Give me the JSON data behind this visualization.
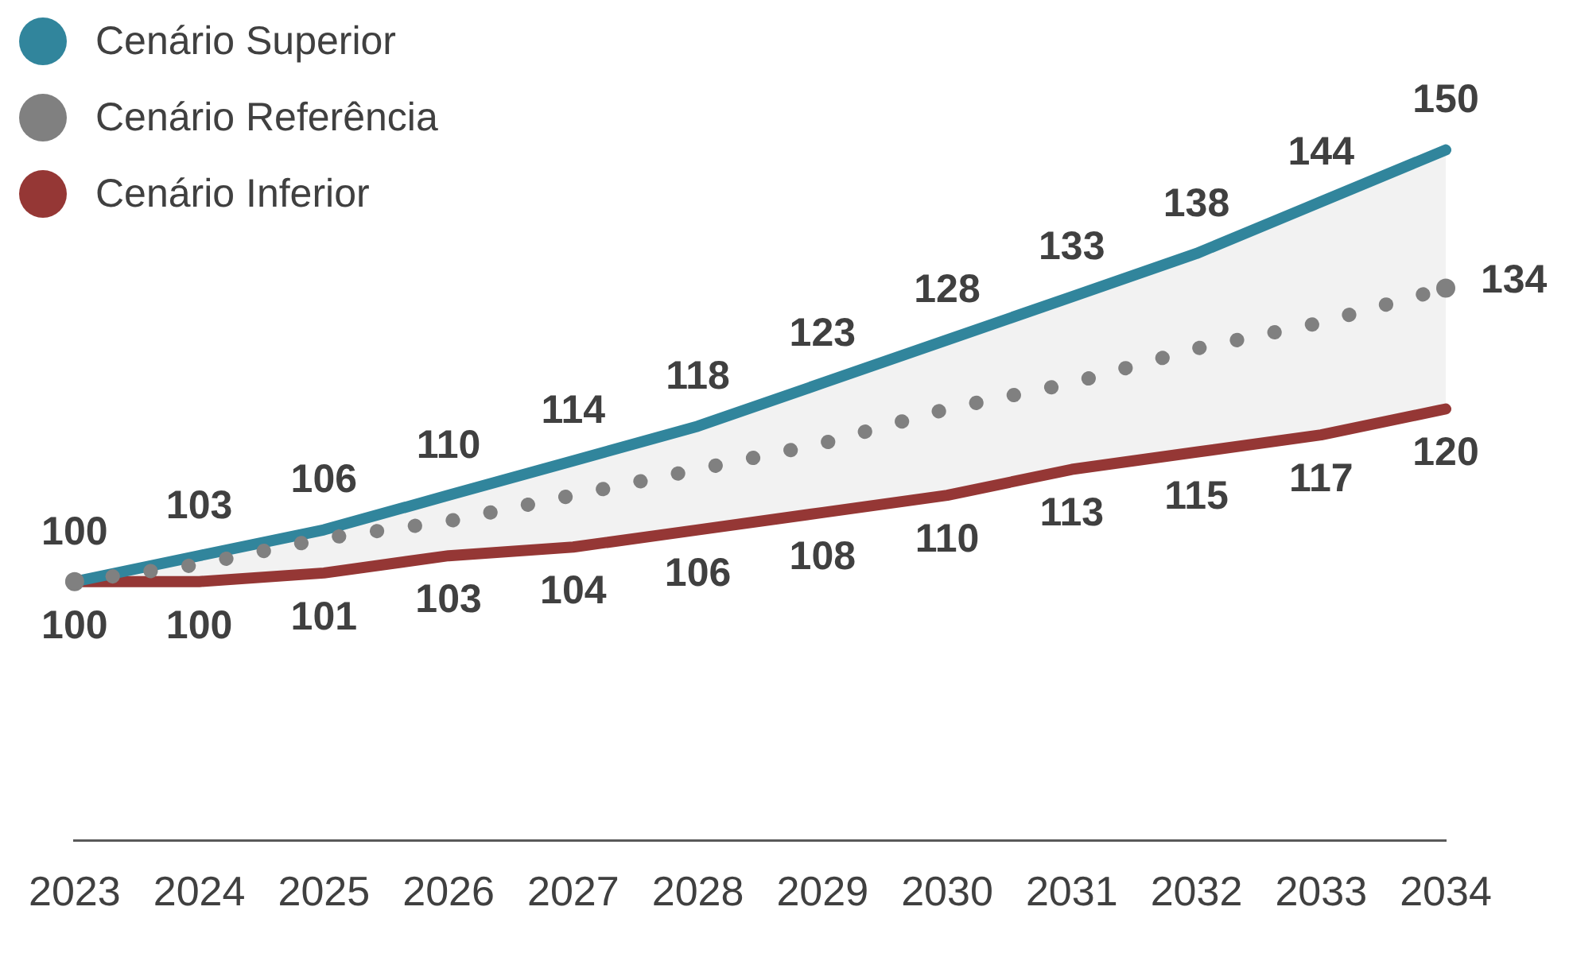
{
  "chart_data": {
    "type": "line",
    "categories": [
      "2023",
      "2024",
      "2025",
      "2026",
      "2027",
      "2028",
      "2029",
      "2030",
      "2031",
      "2032",
      "2033",
      "2034"
    ],
    "legend": "top left",
    "marker": "none",
    "series": [
      {
        "name": "Cenário Superior",
        "color": "#31859c",
        "line_style": "solid",
        "values": [
          100,
          103,
          106,
          110,
          114,
          118,
          123,
          128,
          133,
          138,
          144,
          150
        ],
        "value_labels": [
          "100",
          "103",
          "106",
          "110",
          "114",
          "118",
          "123",
          "128",
          "133",
          "138",
          "144",
          "150"
        ]
      },
      {
        "name": "Cenário Referência",
        "color": "#808080",
        "line_style": "dotted",
        "values": [
          100,
          102,
          105,
          107,
          110,
          113,
          116,
          120,
          123,
          127,
          130,
          134
        ],
        "value_labels": [
          null,
          null,
          null,
          null,
          null,
          null,
          null,
          null,
          null,
          null,
          null,
          "134"
        ],
        "lower": [
          100,
          100,
          101,
          103,
          104,
          106,
          108,
          110,
          113,
          115,
          117,
          120
        ],
        "upper": [
          100,
          103,
          106,
          110,
          114,
          118,
          123,
          128,
          133,
          138,
          144,
          150
        ]
      },
      {
        "name": "Cenário Inferior",
        "color": "#953735",
        "line_style": "solid",
        "values": [
          100,
          100,
          101,
          103,
          104,
          106,
          108,
          110,
          113,
          115,
          117,
          120
        ],
        "value_labels": [
          "100",
          "100",
          "101",
          "103",
          "104",
          "106",
          "108",
          "110",
          "113",
          "115",
          "117",
          "120"
        ]
      }
    ]
  }
}
